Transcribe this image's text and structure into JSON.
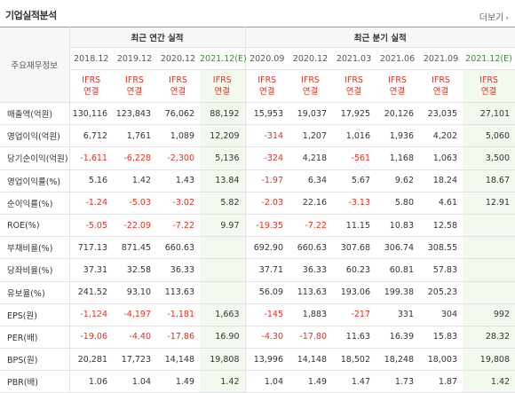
{
  "header": {
    "title": "기업실적분석",
    "more_label": "더보기",
    "more_icon": "chevron-right-icon"
  },
  "table": {
    "corner_label": "주요재무정보",
    "group_annual": "최근 연간 실적",
    "group_quarter": "최근 분기 실적",
    "periods": [
      "2018.12",
      "2019.12",
      "2020.12",
      "2021.12(E)",
      "2020.09",
      "2020.12",
      "2021.03",
      "2021.06",
      "2021.09",
      "2021.12(E)"
    ],
    "ifrs_top": "IFRS",
    "ifrs_bottom": "연결",
    "rows": [
      {
        "label": "매출액(억원)",
        "cells": [
          "130,116",
          "123,843",
          "76,062",
          "88,192",
          "15,953",
          "19,037",
          "17,925",
          "20,126",
          "23,035",
          "27,101"
        ]
      },
      {
        "label": "영업이익(억원)",
        "cells": [
          "6,712",
          "1,761",
          "1,089",
          "12,209",
          "-314",
          "1,207",
          "1,016",
          "1,936",
          "4,202",
          "5,060"
        ]
      },
      {
        "label": "당기순이익(억원)",
        "cells": [
          "-1,611",
          "-6,228",
          "-2,300",
          "5,136",
          "-324",
          "4,218",
          "-561",
          "1,168",
          "1,063",
          "3,500"
        ]
      },
      {
        "label": "영업이익률(%)",
        "cells": [
          "5.16",
          "1.42",
          "1.43",
          "13.84",
          "-1.97",
          "6.34",
          "5.67",
          "9.62",
          "18.24",
          "18.67"
        ]
      },
      {
        "label": "순이익률(%)",
        "cells": [
          "-1.24",
          "-5.03",
          "-3.02",
          "5.82",
          "-2.03",
          "22.16",
          "-3.13",
          "5.80",
          "4.61",
          "12.91"
        ]
      },
      {
        "label": "ROE(%)",
        "cells": [
          "-5.05",
          "-22.09",
          "-7.22",
          "9.97",
          "-19.35",
          "-7.22",
          "11.15",
          "10.83",
          "12.58",
          ""
        ]
      },
      {
        "label": "부채비율(%)",
        "cells": [
          "717.13",
          "871.45",
          "660.63",
          "",
          "692.90",
          "660.63",
          "307.68",
          "306.74",
          "308.55",
          ""
        ]
      },
      {
        "label": "당좌비율(%)",
        "cells": [
          "37.31",
          "32.58",
          "36.33",
          "",
          "37.71",
          "36.33",
          "60.23",
          "60.81",
          "57.83",
          ""
        ]
      },
      {
        "label": "유보율(%)",
        "cells": [
          "241.52",
          "93.10",
          "113.63",
          "",
          "56.09",
          "113.63",
          "193.06",
          "199.38",
          "205.23",
          ""
        ]
      },
      {
        "label": "EPS(원)",
        "cells": [
          "-1,124",
          "-4,197",
          "-1,181",
          "1,663",
          "-145",
          "1,883",
          "-217",
          "331",
          "304",
          "992"
        ]
      },
      {
        "label": "PER(배)",
        "cells": [
          "-19.06",
          "-4.40",
          "-17.86",
          "16.90",
          "-4.30",
          "-17.80",
          "11.63",
          "16.39",
          "15.83",
          "28.32"
        ]
      },
      {
        "label": "BPS(원)",
        "cells": [
          "20,281",
          "17,723",
          "14,148",
          "19,808",
          "13,996",
          "14,148",
          "18,502",
          "18,248",
          "18,003",
          "19,808"
        ]
      },
      {
        "label": "PBR(배)",
        "cells": [
          "1.06",
          "1.04",
          "1.49",
          "1.42",
          "1.04",
          "1.49",
          "1.47",
          "1.73",
          "1.87",
          "1.42"
        ]
      }
    ]
  },
  "colors": {
    "negative": "#e0301e",
    "ifrs": "#e0301e",
    "estimate_bg": "#f2f9ef",
    "estimate_text": "#3a8a3a"
  }
}
